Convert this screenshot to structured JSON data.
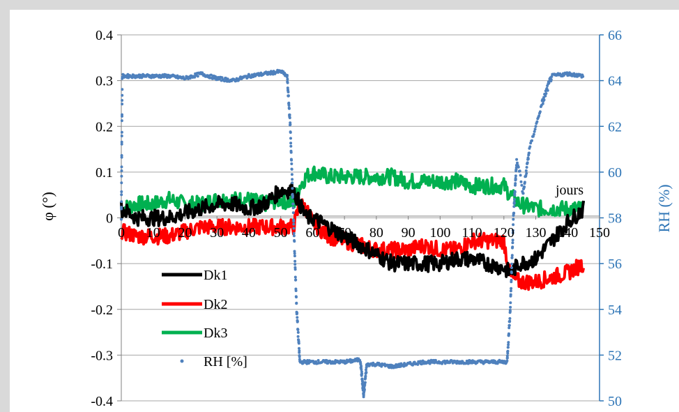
{
  "chart_data": {
    "type": "line",
    "title": "",
    "xlabel": "jours",
    "ylabel": "φ (°)",
    "y2label": "RH (%)",
    "xlim": [
      0,
      150
    ],
    "ylim": [
      -0.4,
      0.4
    ],
    "y2lim": [
      50,
      66
    ],
    "x_ticks": [
      "0",
      "10",
      "20",
      "30",
      "40",
      "50",
      "60",
      "70",
      "80",
      "90",
      "100",
      "110",
      "120",
      "130",
      "140",
      "150"
    ],
    "y_ticks": [
      "0.4",
      "0.3",
      "0.2",
      "0.1",
      "0",
      "-0.1",
      "-0.2",
      "-0.3",
      "-0.4"
    ],
    "y2_ticks": [
      "66",
      "64",
      "62",
      "60",
      "58",
      "56",
      "54",
      "52",
      "50"
    ],
    "grid": "horizontal",
    "legend_position": "bottom-left",
    "colors": {
      "Dk1": "#000000",
      "Dk2": "#ff0000",
      "Dk3": "#00b050",
      "RH": "#4f81bd",
      "right_axis": "#2e75b6"
    },
    "series": [
      {
        "name": "Dk1",
        "axis": "left",
        "x": [
          0,
          5,
          10,
          15,
          20,
          25,
          30,
          35,
          40,
          45,
          50,
          54,
          56,
          58,
          60,
          65,
          70,
          75,
          80,
          85,
          90,
          95,
          100,
          105,
          110,
          115,
          120,
          122,
          125,
          130,
          135,
          140,
          145
        ],
        "y": [
          0.02,
          0.0,
          0.0,
          0.0,
          0.01,
          0.02,
          0.03,
          0.03,
          0.02,
          0.03,
          0.06,
          0.06,
          0.03,
          0.0,
          0.0,
          -0.02,
          -0.04,
          -0.06,
          -0.08,
          -0.1,
          -0.1,
          -0.1,
          -0.1,
          -0.09,
          -0.09,
          -0.1,
          -0.11,
          -0.12,
          -0.1,
          -0.09,
          -0.05,
          -0.01,
          0.02
        ]
      },
      {
        "name": "Dk2",
        "axis": "left",
        "x": [
          0,
          5,
          10,
          15,
          20,
          25,
          30,
          35,
          40,
          45,
          50,
          54,
          56,
          58,
          60,
          65,
          70,
          75,
          80,
          85,
          90,
          95,
          100,
          105,
          110,
          115,
          120,
          122,
          125,
          130,
          135,
          140,
          145
        ],
        "y": [
          -0.03,
          -0.04,
          -0.04,
          -0.04,
          -0.03,
          -0.02,
          -0.02,
          -0.02,
          -0.02,
          -0.02,
          -0.02,
          -0.02,
          0.03,
          0.02,
          -0.01,
          -0.04,
          -0.05,
          -0.06,
          -0.07,
          -0.07,
          -0.07,
          -0.06,
          -0.07,
          -0.07,
          -0.05,
          -0.05,
          -0.05,
          -0.13,
          -0.14,
          -0.14,
          -0.13,
          -0.12,
          -0.1
        ]
      },
      {
        "name": "Dk3",
        "axis": "left",
        "x": [
          0,
          5,
          10,
          15,
          20,
          25,
          30,
          35,
          40,
          45,
          50,
          54,
          56,
          58,
          60,
          65,
          70,
          75,
          80,
          85,
          90,
          95,
          100,
          105,
          110,
          115,
          120,
          122,
          125,
          130,
          135,
          140,
          145
        ],
        "y": [
          0.02,
          0.03,
          0.03,
          0.04,
          0.03,
          0.03,
          0.04,
          0.04,
          0.04,
          0.03,
          0.04,
          0.03,
          0.07,
          0.09,
          0.1,
          0.09,
          0.09,
          0.09,
          0.09,
          0.09,
          0.08,
          0.08,
          0.08,
          0.08,
          0.07,
          0.07,
          0.07,
          0.05,
          0.03,
          0.02,
          0.02,
          0.02,
          0.02
        ]
      },
      {
        "name": "RH [%]",
        "axis": "right",
        "marker": "dots",
        "x": [
          0,
          0.3,
          5,
          10,
          15,
          20,
          25,
          30,
          35,
          40,
          45,
          50,
          52,
          53,
          54,
          55,
          56,
          57,
          60,
          65,
          70,
          75,
          76,
          77,
          80,
          85,
          90,
          95,
          100,
          121,
          122,
          123,
          124,
          125,
          126,
          128,
          130,
          132,
          135,
          140,
          145
        ],
        "y": [
          58,
          64.2,
          64.2,
          64.2,
          64.2,
          64.1,
          64.3,
          64.1,
          64.0,
          64.2,
          64.3,
          64.4,
          64.2,
          62,
          58,
          54,
          51.7,
          51.7,
          51.7,
          51.7,
          51.7,
          51.8,
          50.2,
          51.6,
          51.6,
          51.5,
          51.6,
          51.7,
          51.7,
          51.7,
          54,
          58,
          60.5,
          60,
          59,
          61,
          62,
          63,
          64.2,
          64.3,
          64.2
        ]
      }
    ],
    "legend": [
      "Dk1",
      "Dk2",
      "Dk3",
      "RH [%]"
    ]
  }
}
